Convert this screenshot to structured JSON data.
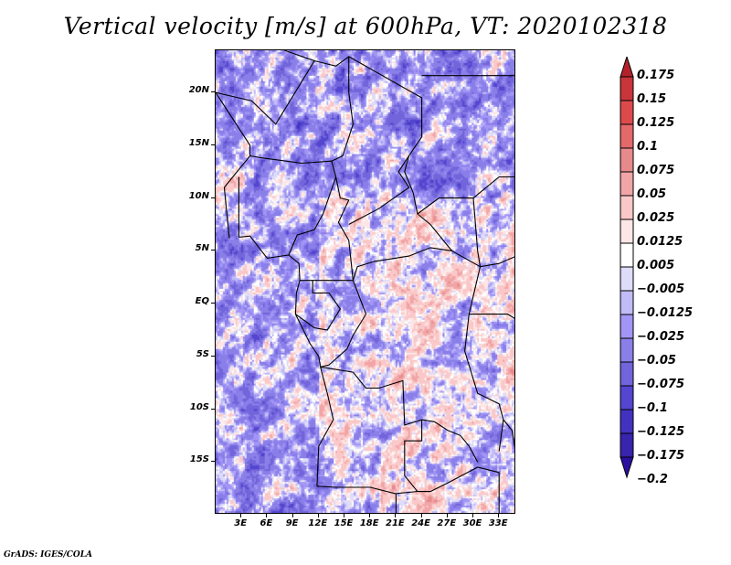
{
  "title": "Vertical velocity [m/s] at 600hPa, VT: 2020102318",
  "credit": "GrADS: IGES/COLA",
  "map": {
    "variable": "Vertical velocity",
    "units": "m/s",
    "level": "600hPa",
    "valid_time": "2020102318",
    "lon_range": [
      0,
      35
    ],
    "lat_range": [
      -20,
      24
    ],
    "y_ticks": [
      "20N",
      "15N",
      "10N",
      "5N",
      "EQ",
      "5S",
      "10S",
      "15S"
    ],
    "y_tick_values": [
      20,
      15,
      10,
      5,
      0,
      -5,
      -10,
      -15
    ],
    "x_ticks": [
      "3E",
      "6E",
      "9E",
      "12E",
      "15E",
      "18E",
      "21E",
      "24E",
      "27E",
      "30E",
      "33E"
    ],
    "x_tick_values": [
      3,
      6,
      9,
      12,
      15,
      18,
      21,
      24,
      27,
      30,
      33
    ]
  },
  "colorbar": {
    "labels": [
      "0.175",
      "0.15",
      "0.125",
      "0.1",
      "0.075",
      "0.05",
      "0.025",
      "0.0125",
      "0.005",
      "−0.005",
      "−0.0125",
      "−0.025",
      "−0.05",
      "−0.075",
      "−0.1",
      "−0.125",
      "−0.175",
      "−0.2"
    ],
    "colors": [
      "#b3222b",
      "#c8353a",
      "#dd4a4c",
      "#e4696a",
      "#e78a8c",
      "#f1a5a6",
      "#fac8c8",
      "#fde6e6",
      "#ffffff",
      "#dedcf8",
      "#c1bbf7",
      "#a295f5",
      "#8a7fe9",
      "#7264da",
      "#5446d0",
      "#4332bf",
      "#3824ad",
      "#2a0fa0"
    ]
  }
}
